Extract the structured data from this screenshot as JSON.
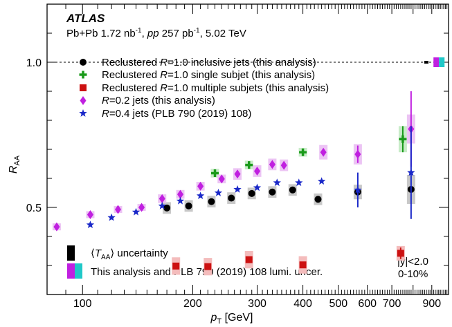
{
  "header": {
    "experiment": "ATLAS",
    "line2": "Pb+Pb 1.72 nb⁻¹, pp 257 pb⁻¹, 5.02 TeV"
  },
  "chart_data": {
    "type": "scatter",
    "xlabel": "pT [GeV]",
    "ylabel": "RAA",
    "xscale": "log",
    "xlim": [
      80,
      1000
    ],
    "ylim": [
      0.2,
      1.2
    ],
    "grid": false,
    "x_tick_labels": [
      "100",
      "200",
      "300",
      "400",
      "500",
      "600",
      "700",
      "900"
    ],
    "y_tick_labels": [
      "0.5",
      "1.0"
    ],
    "reference_line": 1.0,
    "legend_placement": "upper-left",
    "annotations": [
      "|y|<2.0",
      "0-10%"
    ],
    "series": [
      {
        "name": "Reclustered R=1.0 inclusive jets (this analysis)",
        "marker": "circle",
        "color": "#000000",
        "x": [
          170,
          195,
          225,
          255,
          290,
          330,
          375,
          440,
          565,
          790
        ],
        "y": [
          0.498,
          0.505,
          0.52,
          0.532,
          0.548,
          0.553,
          0.56,
          0.528,
          0.553,
          0.562
        ],
        "yerr": [
          0.0,
          0.0,
          0.0,
          0.0,
          0.0,
          0.0,
          0.0,
          0.0,
          0.0,
          0.0
        ],
        "syst": [
          0.02,
          0.02,
          0.02,
          0.02,
          0.02,
          0.02,
          0.02,
          0.02,
          0.025,
          0.05
        ]
      },
      {
        "name": "Reclustered R=1.0 single subjet (this analysis)",
        "marker": "cross",
        "color": "#1a9a1a",
        "x": [
          230,
          285,
          400,
          750
        ],
        "y": [
          0.618,
          0.646,
          0.69,
          0.735
        ],
        "yerr": [
          0.012,
          0.012,
          0.01,
          0.045
        ],
        "syst": [
          0.015,
          0.015,
          0.015,
          0.045
        ]
      },
      {
        "name": "Reclustered R=1.0 multiple subjets (this analysis)",
        "marker": "square",
        "color": "#cc1111",
        "x": [
          180,
          220,
          285,
          400,
          740
        ],
        "y": [
          0.298,
          0.296,
          0.32,
          0.302,
          0.342
        ],
        "yerr": [
          0.0,
          0.0,
          0.0,
          0.0,
          0.02
        ],
        "syst": [
          0.03,
          0.03,
          0.03,
          0.03,
          0.025
        ]
      },
      {
        "name": "R=0.2 jets (this analysis)",
        "marker": "diamond",
        "color": "#c020e0",
        "x": [
          85,
          105,
          125,
          145,
          165,
          185,
          210,
          240,
          265,
          300,
          330,
          355,
          455,
          565,
          790
        ],
        "y": [
          0.433,
          0.475,
          0.493,
          0.5,
          0.53,
          0.545,
          0.573,
          0.598,
          0.615,
          0.625,
          0.648,
          0.645,
          0.69,
          0.683,
          0.77
        ],
        "yerr": [
          0.0,
          0.0,
          0.0,
          0.0,
          0.0,
          0.0,
          0.0,
          0.0,
          0.0,
          0.0,
          0.0,
          0.0,
          0.0,
          0.03,
          0.13
        ],
        "syst": [
          0.012,
          0.012,
          0.012,
          0.012,
          0.015,
          0.015,
          0.015,
          0.015,
          0.02,
          0.02,
          0.02,
          0.02,
          0.025,
          0.035,
          0.05
        ]
      },
      {
        "name": "R=0.4 jets (PLB 790 (2019) 108)",
        "marker": "star",
        "color": "#1a28c8",
        "x": [
          105,
          120,
          140,
          165,
          185,
          210,
          235,
          265,
          300,
          340,
          390,
          450,
          565,
          790
        ],
        "y": [
          0.44,
          0.465,
          0.484,
          0.505,
          0.522,
          0.54,
          0.55,
          0.562,
          0.568,
          0.585,
          0.585,
          0.59,
          0.56,
          0.62
        ],
        "yerr": [
          0.0,
          0.0,
          0.0,
          0.0,
          0.0,
          0.0,
          0.0,
          0.0,
          0.0,
          0.0,
          0.0,
          0.0,
          0.06,
          0.16
        ],
        "syst": [
          0.0,
          0.0,
          0.0,
          0.0,
          0.0,
          0.0,
          0.0,
          0.0,
          0.0,
          0.0,
          0.0,
          0.0,
          0.0,
          0.0
        ]
      }
    ],
    "unc_legend": [
      {
        "label": "⟨TAA⟩ uncertainty"
      },
      {
        "label": "This analysis and PLB 790 (2019) 108 lumi. uncer."
      }
    ],
    "unc_colors": {
      "taa": "#000000",
      "lumi_a": "#c020e0",
      "lumi_b": "#20c8c8"
    }
  }
}
